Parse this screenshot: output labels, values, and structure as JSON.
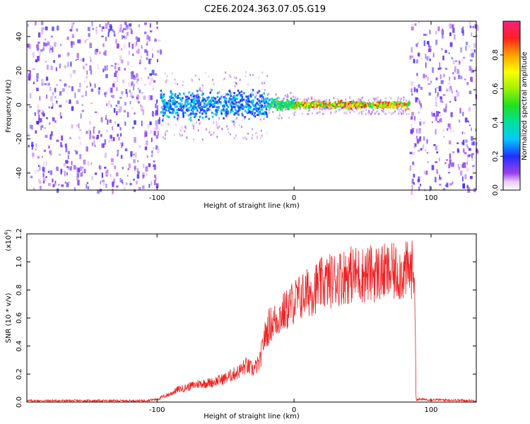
{
  "title": "C2E6.2024.363.07.05.G19",
  "colors": {
    "snr_line": "#ee2222",
    "axis": "#000000"
  },
  "chart_data": [
    {
      "type": "heatmap",
      "xlabel": "Height of straight line (km)",
      "ylabel": "Frequency (Hz)",
      "xlim": [
        -195,
        133
      ],
      "ylim": [
        -50,
        49
      ],
      "x_ticks": [
        -100,
        0,
        100
      ],
      "x_tick_labels": [
        "-100",
        "0",
        "100"
      ],
      "y_ticks": [
        -40,
        -20,
        0,
        20,
        40
      ],
      "y_tick_labels": [
        "-40",
        "-20",
        "0",
        "20",
        "40"
      ],
      "colorbar": {
        "label": "Normalized spectral amplitude",
        "range": [
          0,
          1
        ],
        "ticks": [
          0.0,
          0.2,
          0.4,
          0.6,
          0.8
        ],
        "tick_labels": [
          "0.0",
          "0.2",
          "0.4",
          "0.6",
          "0.8"
        ]
      },
      "regions": [
        {
          "name": "noise",
          "x": [
            -195,
            -98
          ],
          "amplitude": 0.15
        },
        {
          "name": "scintillating-signal",
          "x": [
            -98,
            -20
          ],
          "frequency_center": 0,
          "frequency_spread": 8,
          "amplitude": 0.35
        },
        {
          "name": "transition-signal",
          "x": [
            -20,
            0
          ],
          "frequency_center": 0,
          "frequency_spread": 3,
          "amplitude": 0.55
        },
        {
          "name": "steady-signal",
          "x": [
            0,
            84
          ],
          "frequency_center": 0,
          "frequency_spread": 2,
          "amplitude": 0.95
        },
        {
          "name": "noise",
          "x": [
            84,
            133
          ],
          "amplitude": 0.15
        }
      ]
    },
    {
      "type": "line",
      "xlabel": "Height of straight line (km)",
      "ylabel": "SNR (10 * v/v)",
      "y_multiplier": "(x10",
      "y_multiplier_exp": "4",
      "xlim": [
        -195,
        133
      ],
      "ylim": [
        0,
        1.2
      ],
      "x_ticks": [
        -100,
        0,
        100
      ],
      "x_tick_labels": [
        "-100",
        "0",
        "100"
      ],
      "y_ticks": [
        0.0,
        0.2,
        0.4,
        0.6,
        0.8,
        1.0,
        1.2
      ],
      "y_tick_labels": [
        "0.0",
        "0.2",
        "0.4",
        "0.6",
        "0.8",
        "1.0",
        "1.2"
      ],
      "envelope": {
        "x": [
          -195,
          -110,
          -100,
          -90,
          -85,
          -80,
          -70,
          -60,
          -50,
          -40,
          -35,
          -30,
          -25,
          -22,
          -18,
          -15,
          -10,
          -5,
          0,
          10,
          20,
          30,
          40,
          50,
          60,
          70,
          80,
          88,
          89,
          133
        ],
        "y": [
          0.01,
          0.01,
          0.02,
          0.06,
          0.09,
          0.1,
          0.13,
          0.14,
          0.17,
          0.22,
          0.26,
          0.23,
          0.28,
          0.45,
          0.55,
          0.57,
          0.62,
          0.66,
          0.72,
          0.78,
          0.84,
          0.88,
          0.91,
          0.91,
          0.92,
          0.92,
          0.93,
          0.95,
          0.02,
          0.01
        ]
      }
    }
  ]
}
